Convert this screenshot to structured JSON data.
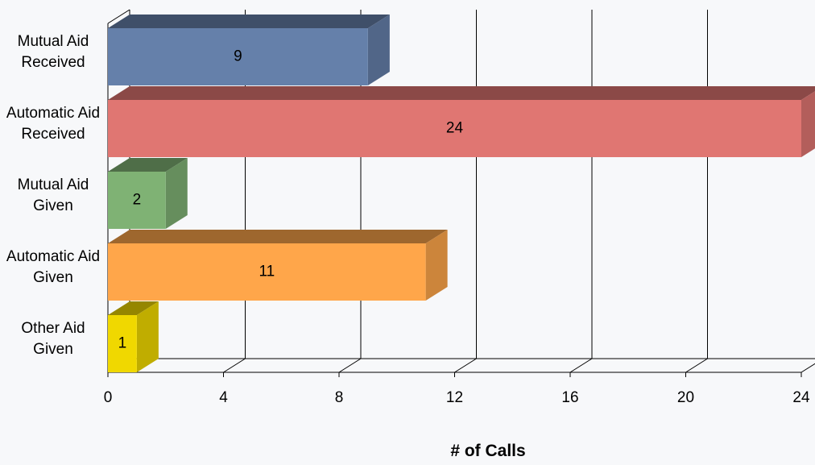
{
  "chart_data": {
    "type": "bar",
    "orientation": "horizontal",
    "three_d": true,
    "categories": [
      "Mutual Aid Received",
      "Automatic Aid Received",
      "Mutual Aid Given",
      "Automatic Aid Given",
      "Other Aid Given"
    ],
    "values": [
      9,
      24,
      2,
      11,
      1
    ],
    "colors": [
      "#6580aa",
      "#e07672",
      "#7fb274",
      "#ffa64a",
      "#f0d800"
    ],
    "xlabel": "# of Calls",
    "xlim": [
      0,
      24
    ],
    "xticks": [
      0,
      4,
      8,
      12,
      16,
      20,
      24
    ],
    "grid": true
  }
}
